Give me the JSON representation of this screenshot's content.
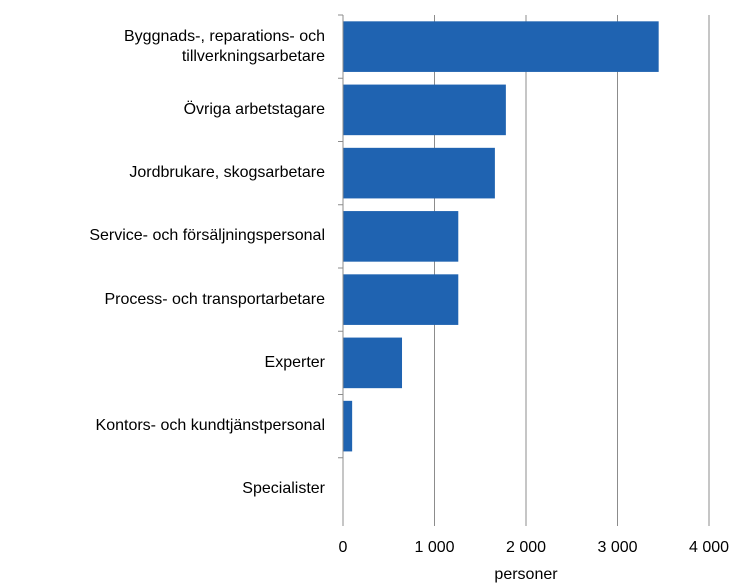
{
  "chart_data": {
    "type": "bar",
    "orientation": "horizontal",
    "categories": [
      "Byggnads-, reparations- och\ntillverkningsarbetare",
      "Övriga arbetstagare",
      "Jordbrukare, skogsarbetare",
      "Service- och försäljningspersonal",
      "Process- och transportarbetare",
      "Experter",
      "Kontors- och kundtjänstpersonal",
      "Specialister"
    ],
    "values": [
      3450,
      1780,
      1660,
      1260,
      1260,
      645,
      100,
      0
    ],
    "color": "#1f63b1",
    "xlabel": "personer",
    "xlim": [
      0,
      4000
    ],
    "xticks": [
      0,
      {
        "value": 1000,
        "label": "1 000"
      },
      {
        "value": 2000,
        "label": "2 000"
      },
      {
        "value": 3000,
        "label": "3 000"
      },
      {
        "value": 4000,
        "label": "4 000"
      }
    ],
    "grid": true
  }
}
